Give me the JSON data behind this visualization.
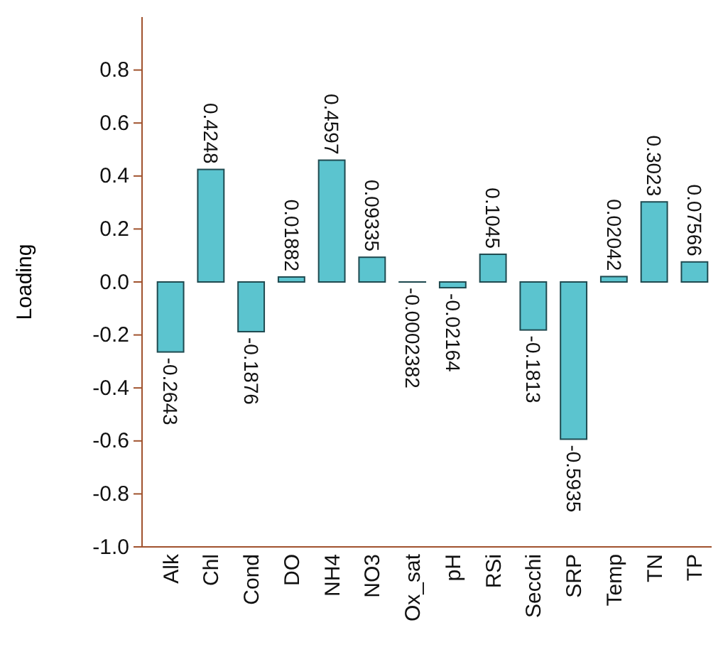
{
  "chart_data": {
    "type": "bar",
    "ylabel": "Loading",
    "categories": [
      "Alk",
      "Chl",
      "Cond",
      "DO",
      "NH4",
      "NO3",
      "Ox_sat",
      "pH",
      "RSi",
      "Secchi",
      "SRP",
      "Temp",
      "TN",
      "TP"
    ],
    "values": [
      -0.2643,
      0.4248,
      -0.1876,
      0.01882,
      0.4597,
      0.09335,
      -0.0002382,
      -0.02164,
      0.1045,
      -0.1813,
      -0.5935,
      0.02042,
      0.3023,
      0.07566
    ],
    "color": "#5bc4cf",
    "ylim": [
      -1,
      1
    ],
    "yticks": [
      {
        "value": -1,
        "label": "-1.0"
      },
      -0.8,
      -0.6,
      -0.4,
      -0.2,
      {
        "value": 0,
        "label": "0.0"
      },
      0.2,
      0.4,
      0.6,
      0.8
    ],
    "grid": false,
    "data_labels": true
  }
}
